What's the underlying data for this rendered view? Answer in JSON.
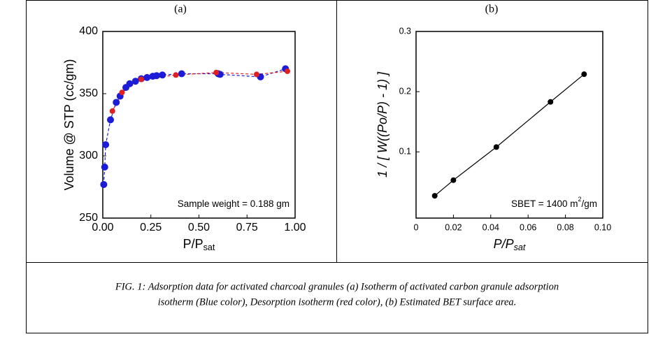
{
  "chart_data": [
    {
      "type": "scatter",
      "label": "(a)",
      "xlabel": "P/P",
      "xlabel_sub": "sat",
      "ylabel": "Volume @ STP (cc/gm)",
      "annotation": {
        "text": "Sample weight = 0.188 gm"
      },
      "xlim": [
        0,
        1.0
      ],
      "ylim": [
        250,
        400
      ],
      "xticks": [
        {
          "value": 0,
          "label": "0.00"
        },
        {
          "value": 0.25,
          "label": "0.25"
        },
        {
          "value": 0.5,
          "label": "0.50"
        },
        {
          "value": 0.75,
          "label": "0.75"
        },
        {
          "value": 1.0,
          "label": "1.00"
        }
      ],
      "yticks": [
        250,
        300,
        350,
        400
      ],
      "series": [
        {
          "name": "Adsorption",
          "color": "#1c1cd8",
          "dash": true,
          "marker_size": 5,
          "x": [
            0.005,
            0.01,
            0.015,
            0.04,
            0.07,
            0.09,
            0.12,
            0.14,
            0.17,
            0.2,
            0.23,
            0.26,
            0.28,
            0.31,
            0.41,
            0.6,
            0.61,
            0.82,
            0.95
          ],
          "values": [
            277,
            291,
            309,
            329,
            343,
            348,
            355,
            358,
            360,
            362,
            363,
            364,
            364.5,
            365,
            366,
            366,
            365.5,
            363.5,
            370
          ]
        },
        {
          "name": "Desorption",
          "color": "#e02020",
          "dash": true,
          "marker_size": 4,
          "x": [
            0.96,
            0.8,
            0.59,
            0.38,
            0.2,
            0.1,
            0.05
          ],
          "values": [
            368,
            365.5,
            367,
            365,
            361.5,
            351,
            336
          ]
        }
      ]
    },
    {
      "type": "scatter",
      "label": "(b)",
      "xlabel": "P/P",
      "xlabel_sub": "sat",
      "ylabel": "1 / [ W((Po/P) - 1) ]",
      "annotation": {
        "text": "SBET = 1400 m",
        "sup": "2",
        "tail": "/gm"
      },
      "xlim": [
        0,
        0.1
      ],
      "ylim": [
        -0.01,
        0.3
      ],
      "xticks": [
        0,
        0.02,
        0.04,
        0.06,
        0.08,
        {
          "value": 0.1,
          "label": "0.10"
        }
      ],
      "yticks": [
        0.1,
        0.2,
        0.3
      ],
      "series": [
        {
          "name": "BET",
          "color": "#000000",
          "dash": false,
          "marker_size": 4,
          "x": [
            0.01,
            0.02,
            0.043,
            0.072,
            0.09
          ],
          "values": [
            0.027,
            0.053,
            0.108,
            0.183,
            0.229
          ]
        }
      ]
    }
  ],
  "caption": [
    "FIG. 1: Adsorption data for activated charcoal granules (a) Isotherm of activated carbon granule adsorption",
    "isotherm (Blue color), Desorption isotherm (red color), (b) Estimated BET surface area."
  ]
}
